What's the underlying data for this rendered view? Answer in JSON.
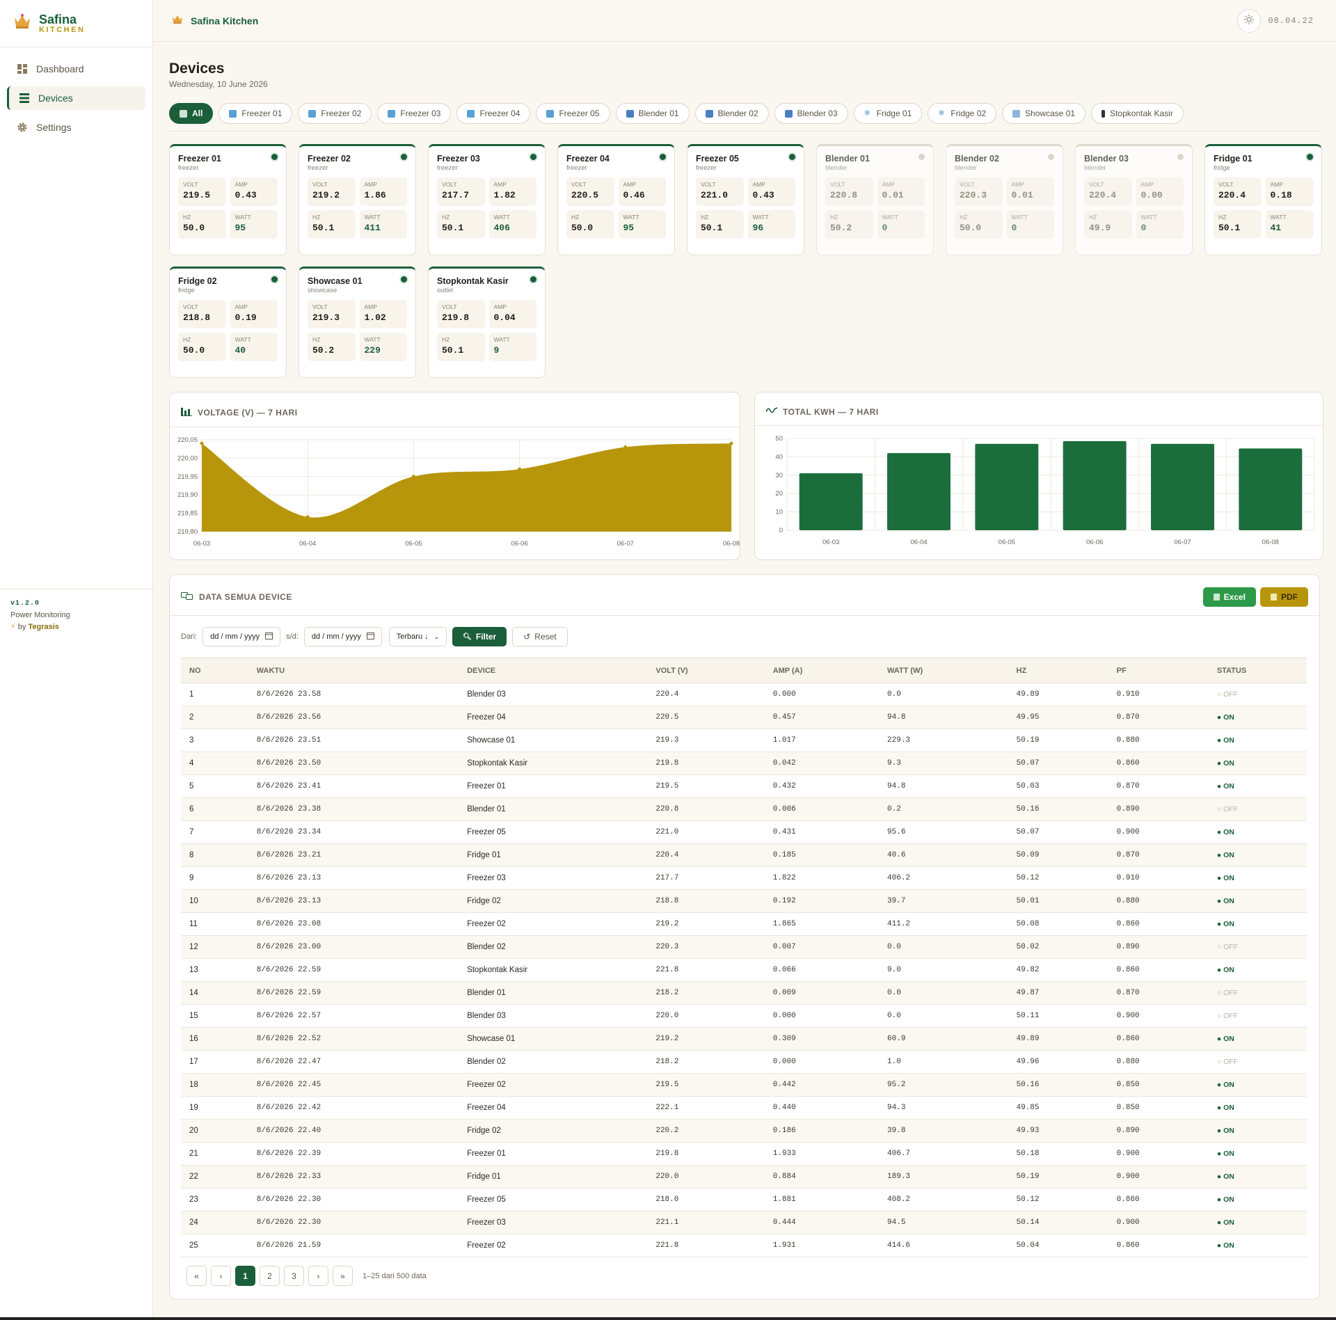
{
  "brand": {
    "name": "Safina",
    "sub": "KITCHEN"
  },
  "nav": [
    {
      "label": "Dashboard",
      "icon": "grid-icon"
    },
    {
      "label": "Devices",
      "icon": "list-icon",
      "active": true
    },
    {
      "label": "Settings",
      "icon": "gear-icon"
    }
  ],
  "footer": {
    "version": "v1.2.0",
    "product": "Power Monitoring",
    "by": "by",
    "company": "Tegrasis"
  },
  "topbar": {
    "title": "Safina Kitchen",
    "clock": "08.04.22"
  },
  "page": {
    "title": "Devices",
    "date": "Wednesday, 10 June 2026"
  },
  "filters": [
    {
      "label": "All",
      "icon": "chart-icon",
      "active": true
    },
    {
      "label": "Freezer 01",
      "icon": "cube-icon"
    },
    {
      "label": "Freezer 02",
      "icon": "cube-icon"
    },
    {
      "label": "Freezer 03",
      "icon": "cube-icon"
    },
    {
      "label": "Freezer 04",
      "icon": "cube-icon"
    },
    {
      "label": "Freezer 05",
      "icon": "cube-icon"
    },
    {
      "label": "Blender 01",
      "icon": "blender-icon"
    },
    {
      "label": "Blender 02",
      "icon": "blender-icon"
    },
    {
      "label": "Blender 03",
      "icon": "blender-icon"
    },
    {
      "label": "Fridge 01",
      "icon": "snowflake-icon"
    },
    {
      "label": "Fridge 02",
      "icon": "snowflake-icon"
    },
    {
      "label": "Showcase 01",
      "icon": "showcase-icon"
    },
    {
      "label": "Stopkontak Kasir",
      "icon": "plug-icon"
    }
  ],
  "metric_labels": {
    "volt": "VOLT",
    "amp": "AMP",
    "hz": "HZ",
    "watt": "WATT"
  },
  "devices": [
    {
      "name": "Freezer 01",
      "type": "freezer",
      "on": true,
      "volt": "219.5",
      "amp": "0.43",
      "hz": "50.0",
      "watt": "95"
    },
    {
      "name": "Freezer 02",
      "type": "freezer",
      "on": true,
      "volt": "219.2",
      "amp": "1.86",
      "hz": "50.1",
      "watt": "411"
    },
    {
      "name": "Freezer 03",
      "type": "freezer",
      "on": true,
      "volt": "217.7",
      "amp": "1.82",
      "hz": "50.1",
      "watt": "406"
    },
    {
      "name": "Freezer 04",
      "type": "freezer",
      "on": true,
      "volt": "220.5",
      "amp": "0.46",
      "hz": "50.0",
      "watt": "95"
    },
    {
      "name": "Freezer 05",
      "type": "freezer",
      "on": true,
      "volt": "221.0",
      "amp": "0.43",
      "hz": "50.1",
      "watt": "96"
    },
    {
      "name": "Blender 01",
      "type": "blender",
      "on": false,
      "volt": "220.8",
      "amp": "0.01",
      "hz": "50.2",
      "watt": "0"
    },
    {
      "name": "Blender 02",
      "type": "blender",
      "on": false,
      "volt": "220.3",
      "amp": "0.01",
      "hz": "50.0",
      "watt": "0"
    },
    {
      "name": "Blender 03",
      "type": "blender",
      "on": false,
      "volt": "220.4",
      "amp": "0.00",
      "hz": "49.9",
      "watt": "0"
    },
    {
      "name": "Fridge 01",
      "type": "fridge",
      "on": true,
      "volt": "220.4",
      "amp": "0.18",
      "hz": "50.1",
      "watt": "41"
    },
    {
      "name": "Fridge 02",
      "type": "fridge",
      "on": true,
      "volt": "218.8",
      "amp": "0.19",
      "hz": "50.0",
      "watt": "40"
    },
    {
      "name": "Showcase 01",
      "type": "showcase",
      "on": true,
      "volt": "219.3",
      "amp": "1.02",
      "hz": "50.2",
      "watt": "229"
    },
    {
      "name": "Stopkontak Kasir",
      "type": "outlet",
      "on": true,
      "volt": "219.8",
      "amp": "0.04",
      "hz": "50.1",
      "watt": "9"
    }
  ],
  "chart_data": [
    {
      "type": "area",
      "title": "VOLTAGE (V) — 7 HARI",
      "x": [
        "06-03",
        "06-04",
        "06-05",
        "06-06",
        "06-07",
        "06-08"
      ],
      "values": [
        220.04,
        219.84,
        219.95,
        219.97,
        220.03,
        220.04
      ],
      "ylim": [
        219.8,
        220.05
      ],
      "yticks": [
        "220,05",
        "220,00",
        "219,95",
        "219,90",
        "219,85",
        "219,80"
      ],
      "color": "#b8960c",
      "grid": true
    },
    {
      "type": "bar",
      "title": "TOTAL KWH — 7 HARI",
      "categories": [
        "06-03",
        "06-04",
        "06-05",
        "06-06",
        "06-07",
        "06-08"
      ],
      "values": [
        31,
        42,
        47,
        48.5,
        47,
        44.5
      ],
      "ylim": [
        0,
        50
      ],
      "yticks": [
        "50",
        "40",
        "30",
        "20",
        "10",
        "0"
      ],
      "color": "#1b6e3c",
      "grid": true
    }
  ],
  "table": {
    "title": "DATA SEMUA DEVICE",
    "export_excel": "Excel",
    "export_pdf": "PDF",
    "from_label": "Dari:",
    "to_label": "s/d:",
    "date_placeholder": "dd / mm / yyyy",
    "sort": "Terbaru ↓",
    "filter_btn": "Filter",
    "reset_btn": "Reset",
    "columns": [
      "NO",
      "WAKTU",
      "DEVICE",
      "VOLT (V)",
      "AMP (A)",
      "WATT (W)",
      "HZ",
      "PF",
      "STATUS"
    ],
    "on_label": "ON",
    "off_label": "OFF",
    "rows": [
      [
        "1",
        "8/6/2026 23.58",
        "Blender 03",
        "220.4",
        "0.000",
        "0.0",
        "49.89",
        "0.910",
        "OFF"
      ],
      [
        "2",
        "8/6/2026 23.56",
        "Freezer 04",
        "220.5",
        "0.457",
        "94.8",
        "49.95",
        "0.870",
        "ON"
      ],
      [
        "3",
        "8/6/2026 23.51",
        "Showcase 01",
        "219.3",
        "1.017",
        "229.3",
        "50.19",
        "0.880",
        "ON"
      ],
      [
        "4",
        "8/6/2026 23.50",
        "Stopkontak Kasir",
        "219.8",
        "0.042",
        "9.3",
        "50.07",
        "0.860",
        "ON"
      ],
      [
        "5",
        "8/6/2026 23.41",
        "Freezer 01",
        "219.5",
        "0.432",
        "94.8",
        "50.03",
        "0.870",
        "ON"
      ],
      [
        "6",
        "8/6/2026 23.38",
        "Blender 01",
        "220.8",
        "0.006",
        "0.2",
        "50.16",
        "0.890",
        "OFF"
      ],
      [
        "7",
        "8/6/2026 23.34",
        "Freezer 05",
        "221.0",
        "0.431",
        "95.6",
        "50.07",
        "0.900",
        "ON"
      ],
      [
        "8",
        "8/6/2026 23.21",
        "Fridge 01",
        "220.4",
        "0.185",
        "40.6",
        "50.09",
        "0.870",
        "ON"
      ],
      [
        "9",
        "8/6/2026 23.13",
        "Freezer 03",
        "217.7",
        "1.822",
        "406.2",
        "50.12",
        "0.910",
        "ON"
      ],
      [
        "10",
        "8/6/2026 23.13",
        "Fridge 02",
        "218.8",
        "0.192",
        "39.7",
        "50.01",
        "0.880",
        "ON"
      ],
      [
        "11",
        "8/6/2026 23.08",
        "Freezer 02",
        "219.2",
        "1.865",
        "411.2",
        "50.08",
        "0.860",
        "ON"
      ],
      [
        "12",
        "8/6/2026 23.00",
        "Blender 02",
        "220.3",
        "0.007",
        "0.0",
        "50.02",
        "0.890",
        "OFF"
      ],
      [
        "13",
        "8/6/2026 22.59",
        "Stopkontak Kasir",
        "221.8",
        "0.066",
        "9.0",
        "49.82",
        "0.860",
        "ON"
      ],
      [
        "14",
        "8/6/2026 22.59",
        "Blender 01",
        "218.2",
        "0.009",
        "0.0",
        "49.87",
        "0.870",
        "OFF"
      ],
      [
        "15",
        "8/6/2026 22.57",
        "Blender 03",
        "220.0",
        "0.000",
        "0.0",
        "50.11",
        "0.900",
        "OFF"
      ],
      [
        "16",
        "8/6/2026 22.52",
        "Showcase 01",
        "219.2",
        "0.309",
        "60.9",
        "49.89",
        "0.860",
        "ON"
      ],
      [
        "17",
        "8/6/2026 22.47",
        "Blender 02",
        "218.2",
        "0.000",
        "1.0",
        "49.96",
        "0.880",
        "OFF"
      ],
      [
        "18",
        "8/6/2026 22.45",
        "Freezer 02",
        "219.5",
        "0.442",
        "95.2",
        "50.16",
        "0.850",
        "ON"
      ],
      [
        "19",
        "8/6/2026 22.42",
        "Freezer 04",
        "222.1",
        "0.440",
        "94.3",
        "49.85",
        "0.850",
        "ON"
      ],
      [
        "20",
        "8/6/2026 22.40",
        "Fridge 02",
        "220.2",
        "0.186",
        "39.8",
        "49.93",
        "0.890",
        "ON"
      ],
      [
        "21",
        "8/6/2026 22.39",
        "Freezer 01",
        "219.8",
        "1.933",
        "406.7",
        "50.18",
        "0.900",
        "ON"
      ],
      [
        "22",
        "8/6/2026 22.33",
        "Fridge 01",
        "220.0",
        "0.884",
        "189.3",
        "50.19",
        "0.900",
        "ON"
      ],
      [
        "23",
        "8/6/2026 22.30",
        "Freezer 05",
        "218.0",
        "1.881",
        "408.2",
        "50.12",
        "0.860",
        "ON"
      ],
      [
        "24",
        "8/6/2026 22.30",
        "Freezer 03",
        "221.1",
        "0.444",
        "94.5",
        "50.14",
        "0.900",
        "ON"
      ],
      [
        "25",
        "8/6/2026 21.59",
        "Freezer 02",
        "221.8",
        "1.931",
        "414.6",
        "50.04",
        "0.860",
        "ON"
      ]
    ]
  },
  "pager": {
    "first": "«",
    "prev": "‹",
    "pages": [
      "1",
      "2",
      "3"
    ],
    "next": "›",
    "last": "»",
    "info": "1–25 dari 500 data"
  },
  "colors": {
    "primary": "#1b5e3a",
    "gold": "#b8960c",
    "excel": "#2c9a48"
  }
}
